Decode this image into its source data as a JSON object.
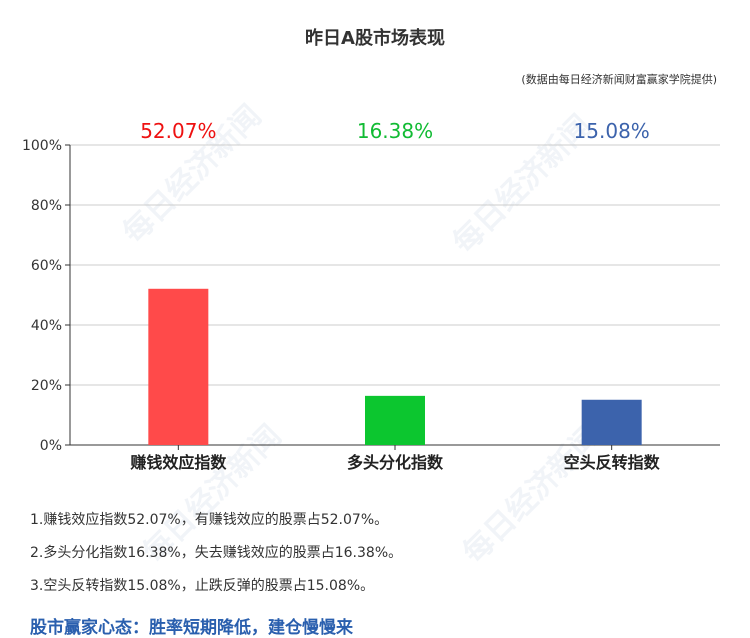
{
  "title": "昨日A股市场表现",
  "source": "(数据由每日经济新闻财富赢家学院提供)",
  "watermark": "每日经济新闻",
  "chart_data": {
    "type": "bar",
    "categories": [
      "赚钱效应指数",
      "多头分化指数",
      "空头反转指数"
    ],
    "values": [
      52.07,
      16.38,
      15.08
    ],
    "value_labels": [
      "52.07%",
      "16.38%",
      "15.08%"
    ],
    "colors": [
      "#ff4a4a",
      "#0cc62f",
      "#3c63ac"
    ],
    "label_colors": [
      "#ee1111",
      "#11bb33",
      "#3c63ac"
    ],
    "yticks": [
      "0%",
      "20%",
      "40%",
      "60%",
      "80%",
      "100%"
    ],
    "ylim": [
      0,
      100
    ],
    "grid": true
  },
  "notes": [
    "1.赚钱效应指数52.07%，有赚钱效应的股票占52.07%。",
    "2.多头分化指数16.38%，失去赚钱效应的股票占16.38%。",
    "3.空头反转指数15.08%，止跌反弹的股票占15.08%。"
  ],
  "mindset": "股市赢家心态：胜率短期降低，建仓慢慢来"
}
